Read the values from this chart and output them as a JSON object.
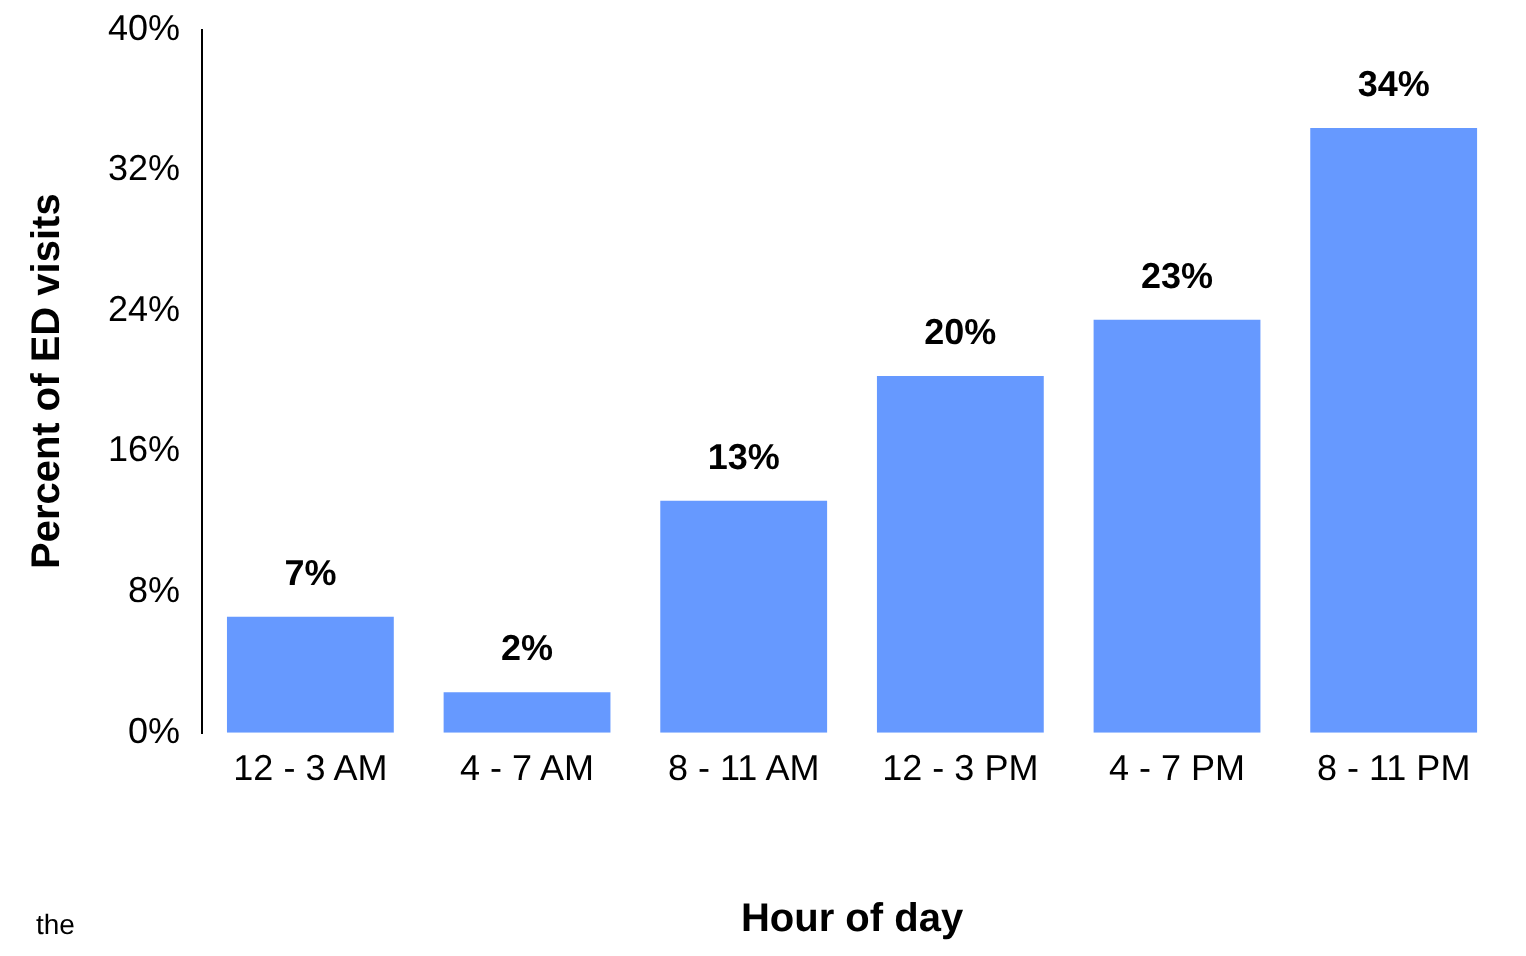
{
  "chart_data": {
    "type": "bar",
    "xlabel": "Hour of day",
    "ylabel": "Percent of ED visits",
    "categories": [
      "12 - 3 AM",
      "4 - 7 AM",
      "8 - 11 AM",
      "12 - 3 PM",
      "4 - 7 PM",
      "8 - 11 PM"
    ],
    "values": [
      6.6,
      2.3,
      13.2,
      20.3,
      23.5,
      34.4
    ],
    "value_labels": [
      "7%",
      "2%",
      "13%",
      "20%",
      "23%",
      "34%"
    ],
    "color": "#6699ff",
    "ylim": [
      0,
      40
    ],
    "yticks": [
      {
        "value": 0,
        "label": "0%"
      },
      {
        "value": 8,
        "label": "8%"
      },
      {
        "value": 16,
        "label": "16%"
      },
      {
        "value": 24,
        "label": "24%"
      },
      {
        "value": 32,
        "label": "32%"
      },
      {
        "value": 40,
        "label": "40%"
      }
    ],
    "grid": false,
    "annotations": [
      "the"
    ]
  }
}
